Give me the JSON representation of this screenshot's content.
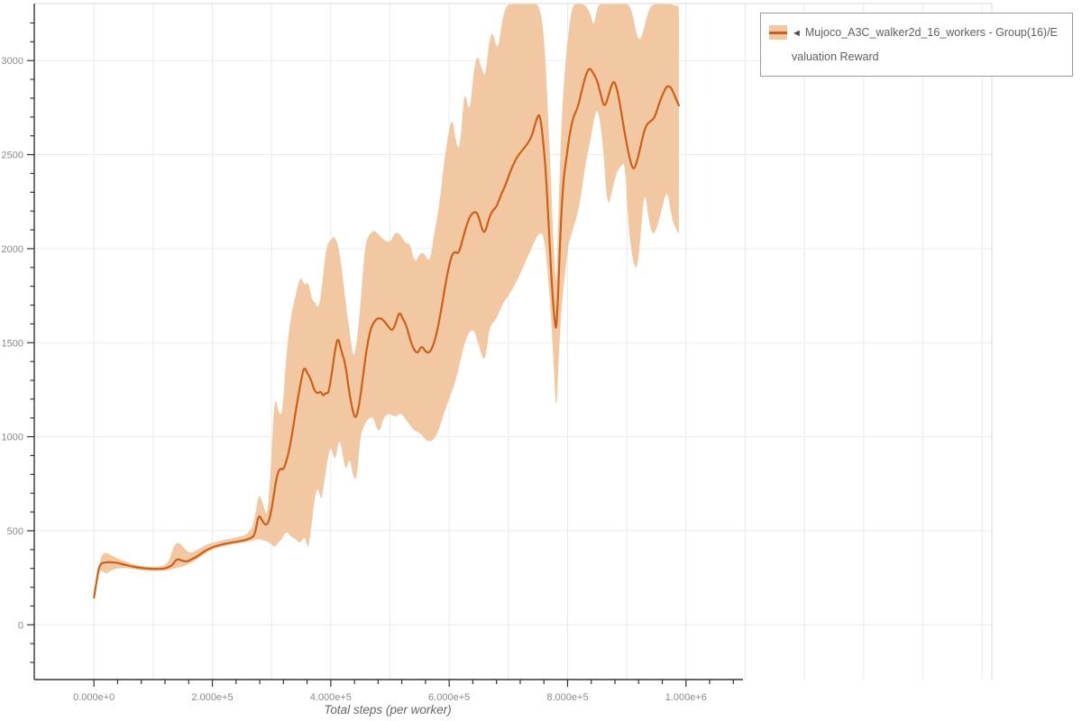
{
  "legend": {
    "collapse_icon": "◄",
    "label": "Mujoco_A3C_walker2d_16_workers - Group(16)/Evaluation Reward"
  },
  "axes": {
    "x_title": "Total steps (per worker)",
    "x_tick_labels": [
      "0.000e+0",
      "2.000e+5",
      "4.000e+5",
      "6.000e+5",
      "8.000e+5",
      "1.000e+6"
    ],
    "x_tick_values": [
      0,
      200000,
      400000,
      600000,
      800000,
      1000000
    ],
    "x_minor_step": 40000,
    "x_minor_max": 1080000,
    "y_tick_labels": [
      "0",
      "500",
      "1000",
      "1500",
      "2000",
      "2500",
      "3000"
    ],
    "y_tick_values": [
      0,
      500,
      1000,
      1500,
      2000,
      2500,
      3000
    ],
    "y_minor_step": 100,
    "y_minor_min": -200,
    "y_minor_max": 3200
  },
  "colors": {
    "line": "#d05f16",
    "band": "#f2c8a2",
    "grid": "#eaeaea",
    "frame_light": "#d9d9d9",
    "axis": "#333333",
    "tick_label": "#8a8a8a",
    "axis_title": "#666666"
  },
  "chart_data": {
    "type": "line",
    "title": "",
    "xlabel": "Total steps (per worker)",
    "ylabel": "",
    "xlim": [
      -100800,
      1516600
    ],
    "ylim": [
      -291,
      3303
    ],
    "grid": true,
    "legend_position": "top-right",
    "series": [
      {
        "name": "Mujoco_A3C_walker2d_16_workers - Group(16)/Evaluation Reward",
        "points": [
          [
            0,
            145
          ],
          [
            4000,
            220
          ],
          [
            8000,
            300
          ],
          [
            12000,
            328
          ],
          [
            20000,
            332
          ],
          [
            30000,
            333
          ],
          [
            40000,
            329
          ],
          [
            50000,
            321
          ],
          [
            62000,
            312
          ],
          [
            75000,
            304
          ],
          [
            90000,
            299
          ],
          [
            105000,
            297
          ],
          [
            120000,
            298
          ],
          [
            132000,
            315
          ],
          [
            140000,
            352
          ],
          [
            148000,
            342
          ],
          [
            156000,
            335
          ],
          [
            165000,
            348
          ],
          [
            175000,
            365
          ],
          [
            185000,
            388
          ],
          [
            195000,
            405
          ],
          [
            205000,
            418
          ],
          [
            215000,
            426
          ],
          [
            225000,
            433
          ],
          [
            240000,
            441
          ],
          [
            255000,
            450
          ],
          [
            265000,
            460
          ],
          [
            272000,
            478
          ],
          [
            278000,
            590
          ],
          [
            284000,
            555
          ],
          [
            290000,
            527
          ],
          [
            296000,
            550
          ],
          [
            302000,
            650
          ],
          [
            308000,
            780
          ],
          [
            314000,
            835
          ],
          [
            320000,
            820
          ],
          [
            328000,
            900
          ],
          [
            335000,
            1020
          ],
          [
            343000,
            1180
          ],
          [
            350000,
            1300
          ],
          [
            355000,
            1375
          ],
          [
            360000,
            1340
          ],
          [
            366000,
            1310
          ],
          [
            372000,
            1248
          ],
          [
            378000,
            1228
          ],
          [
            383000,
            1243
          ],
          [
            387000,
            1215
          ],
          [
            392000,
            1235
          ],
          [
            396000,
            1228
          ],
          [
            402000,
            1340
          ],
          [
            407000,
            1455
          ],
          [
            412000,
            1537
          ],
          [
            418000,
            1455
          ],
          [
            424000,
            1398
          ],
          [
            430000,
            1262
          ],
          [
            436000,
            1150
          ],
          [
            442000,
            1088
          ],
          [
            448000,
            1165
          ],
          [
            454000,
            1310
          ],
          [
            460000,
            1455
          ],
          [
            467000,
            1573
          ],
          [
            474000,
            1615
          ],
          [
            480000,
            1632
          ],
          [
            488000,
            1625
          ],
          [
            496000,
            1590
          ],
          [
            504000,
            1560
          ],
          [
            510000,
            1605
          ],
          [
            516000,
            1668
          ],
          [
            522000,
            1625
          ],
          [
            528000,
            1590
          ],
          [
            534000,
            1517
          ],
          [
            540000,
            1465
          ],
          [
            547000,
            1440
          ],
          [
            553000,
            1487
          ],
          [
            560000,
            1452
          ],
          [
            566000,
            1445
          ],
          [
            572000,
            1475
          ],
          [
            580000,
            1560
          ],
          [
            588000,
            1700
          ],
          [
            596000,
            1855
          ],
          [
            604000,
            1965
          ],
          [
            610000,
            1985
          ],
          [
            616000,
            1970
          ],
          [
            624000,
            2065
          ],
          [
            630000,
            2130
          ],
          [
            636000,
            2180
          ],
          [
            645000,
            2200
          ],
          [
            650000,
            2170
          ],
          [
            656000,
            2095
          ],
          [
            661000,
            2085
          ],
          [
            668000,
            2170
          ],
          [
            674000,
            2205
          ],
          [
            680000,
            2222
          ],
          [
            688000,
            2290
          ],
          [
            696000,
            2345
          ],
          [
            705000,
            2425
          ],
          [
            714000,
            2485
          ],
          [
            724000,
            2525
          ],
          [
            732000,
            2556
          ],
          [
            740000,
            2600
          ],
          [
            748000,
            2695
          ],
          [
            753000,
            2720
          ],
          [
            758000,
            2600
          ],
          [
            764000,
            2380
          ],
          [
            770000,
            2000
          ],
          [
            775000,
            1730
          ],
          [
            779000,
            1590
          ],
          [
            781000,
            1572
          ],
          [
            784000,
            1750
          ],
          [
            788000,
            2100
          ],
          [
            793000,
            2370
          ],
          [
            798000,
            2480
          ],
          [
            803000,
            2600
          ],
          [
            810000,
            2705
          ],
          [
            817000,
            2745
          ],
          [
            825000,
            2855
          ],
          [
            831000,
            2925
          ],
          [
            837000,
            2965
          ],
          [
            844000,
            2930
          ],
          [
            850000,
            2895
          ],
          [
            856000,
            2820
          ],
          [
            862000,
            2748
          ],
          [
            868000,
            2800
          ],
          [
            874000,
            2870
          ],
          [
            879000,
            2895
          ],
          [
            885000,
            2830
          ],
          [
            891000,
            2720
          ],
          [
            897000,
            2604
          ],
          [
            904000,
            2490
          ],
          [
            911000,
            2410
          ],
          [
            918000,
            2470
          ],
          [
            925000,
            2570
          ],
          [
            932000,
            2655
          ],
          [
            940000,
            2678
          ],
          [
            947000,
            2695
          ],
          [
            955000,
            2775
          ],
          [
            962000,
            2830
          ],
          [
            968000,
            2868
          ],
          [
            975000,
            2858
          ],
          [
            982000,
            2805
          ],
          [
            988000,
            2762
          ]
        ],
        "band": [
          [
            0,
            140,
            152
          ],
          [
            5000,
            215,
            235
          ],
          [
            10000,
            295,
            345
          ],
          [
            16000,
            278,
            382
          ],
          [
            22000,
            272,
            383
          ],
          [
            30000,
            292,
            368
          ],
          [
            40000,
            300,
            352
          ],
          [
            52000,
            303,
            338
          ],
          [
            65000,
            296,
            322
          ],
          [
            80000,
            290,
            312
          ],
          [
            95000,
            287,
            308
          ],
          [
            110000,
            286,
            309
          ],
          [
            125000,
            290,
            322
          ],
          [
            136000,
            300,
            430
          ],
          [
            144000,
            305,
            438
          ],
          [
            152000,
            312,
            408
          ],
          [
            162000,
            326,
            380
          ],
          [
            175000,
            348,
            398
          ],
          [
            188000,
            380,
            424
          ],
          [
            200000,
            400,
            436
          ],
          [
            215000,
            415,
            448
          ],
          [
            230000,
            426,
            458
          ],
          [
            245000,
            434,
            468
          ],
          [
            258000,
            441,
            480
          ],
          [
            270000,
            448,
            525
          ],
          [
            278000,
            458,
            708
          ],
          [
            286000,
            448,
            640
          ],
          [
            293000,
            444,
            560
          ],
          [
            300000,
            428,
            900
          ],
          [
            305000,
            412,
            1225
          ],
          [
            312000,
            438,
            1130
          ],
          [
            318000,
            458,
            1110
          ],
          [
            325000,
            500,
            1440
          ],
          [
            332000,
            470,
            1630
          ],
          [
            341000,
            455,
            1760
          ],
          [
            349000,
            430,
            1860
          ],
          [
            356000,
            478,
            1800
          ],
          [
            362000,
            390,
            1828
          ],
          [
            368000,
            540,
            1730
          ],
          [
            374000,
            700,
            1712
          ],
          [
            379000,
            730,
            1680
          ],
          [
            384000,
            645,
            1760
          ],
          [
            392000,
            828,
            2010
          ],
          [
            400000,
            968,
            2050
          ],
          [
            407000,
            852,
            2068
          ],
          [
            415000,
            1018,
            1990
          ],
          [
            425000,
            800,
            1720
          ],
          [
            432000,
            900,
            1560
          ],
          [
            438000,
            780,
            1408
          ],
          [
            444000,
            770,
            1500
          ],
          [
            450000,
            1010,
            1700
          ],
          [
            458000,
            1070,
            2030
          ],
          [
            466000,
            1105,
            2078
          ],
          [
            473000,
            1100,
            2100
          ],
          [
            481000,
            1008,
            2075
          ],
          [
            490000,
            1110,
            2045
          ],
          [
            500000,
            1125,
            2030
          ],
          [
            509000,
            1102,
            2090
          ],
          [
            518000,
            1130,
            2075
          ],
          [
            526000,
            1095,
            2028
          ],
          [
            534000,
            1060,
            2030
          ],
          [
            542000,
            1030,
            1918
          ],
          [
            550000,
            1022,
            1975
          ],
          [
            558000,
            990,
            1980
          ],
          [
            567000,
            972,
            1918
          ],
          [
            575000,
            988,
            2090
          ],
          [
            583000,
            1040,
            2220
          ],
          [
            591000,
            1120,
            2450
          ],
          [
            598000,
            1185,
            2600
          ],
          [
            605000,
            1240,
            2705
          ],
          [
            612000,
            1310,
            2560
          ],
          [
            618000,
            1390,
            2520
          ],
          [
            626000,
            1500,
            2868
          ],
          [
            634000,
            1560,
            2700
          ],
          [
            642000,
            1570,
            2960
          ],
          [
            648000,
            1508,
            3035
          ],
          [
            655000,
            1430,
            2955
          ],
          [
            661000,
            1402,
            2905
          ],
          [
            668000,
            1580,
            3120
          ],
          [
            674000,
            1605,
            3155
          ],
          [
            682000,
            1640,
            3040
          ],
          [
            690000,
            1705,
            3230
          ],
          [
            698000,
            1740,
            3300
          ],
          [
            710000,
            1800,
            3300
          ],
          [
            725000,
            1900,
            3300
          ],
          [
            740000,
            2010,
            3300
          ],
          [
            752000,
            2090,
            3300
          ],
          [
            760000,
            2070,
            3150
          ],
          [
            766000,
            1900,
            2800
          ],
          [
            772000,
            1650,
            2350
          ],
          [
            777000,
            1350,
            1980
          ],
          [
            781000,
            1105,
            1760
          ],
          [
            785000,
            1420,
            2250
          ],
          [
            790000,
            1700,
            2700
          ],
          [
            796000,
            1880,
            2980
          ],
          [
            802000,
            2035,
            3160
          ],
          [
            808000,
            2090,
            3300
          ],
          [
            820000,
            2220,
            3300
          ],
          [
            830000,
            2450,
            3300
          ],
          [
            840000,
            2600,
            3240
          ],
          [
            844000,
            2680,
            3175
          ],
          [
            851000,
            2762,
            3300
          ],
          [
            860000,
            2550,
            3300
          ],
          [
            867000,
            2210,
            3300
          ],
          [
            875000,
            2300,
            3300
          ],
          [
            882000,
            2400,
            3300
          ],
          [
            890000,
            2440,
            3300
          ],
          [
            897000,
            2462,
            3300
          ],
          [
            903000,
            2100,
            3300
          ],
          [
            910000,
            1940,
            3250
          ],
          [
            917000,
            1875,
            3130
          ],
          [
            923000,
            2050,
            3105
          ],
          [
            930000,
            2330,
            3180
          ],
          [
            937000,
            2150,
            3270
          ],
          [
            944000,
            2065,
            3300
          ],
          [
            952000,
            2120,
            3300
          ],
          [
            960000,
            2220,
            3300
          ],
          [
            968000,
            2318,
            3300
          ],
          [
            974000,
            2200,
            3300
          ],
          [
            980000,
            2115,
            3295
          ],
          [
            988000,
            2080,
            3290
          ]
        ]
      }
    ]
  }
}
